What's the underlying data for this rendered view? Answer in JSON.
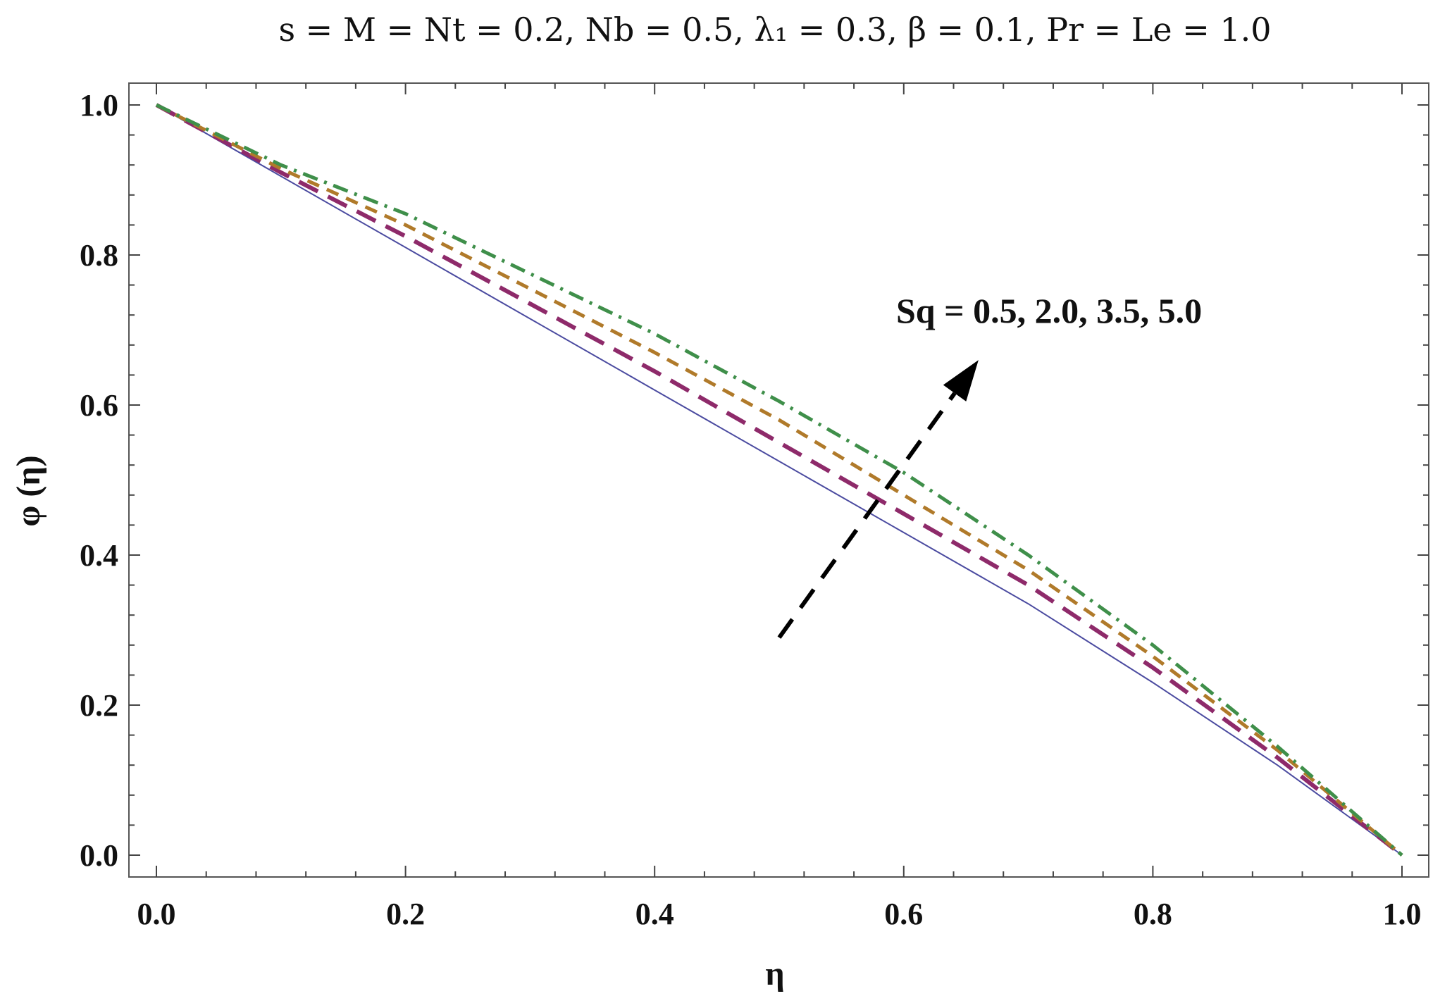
{
  "chart_data": {
    "type": "line",
    "title": "s = M = Nt = 0.2, Nb = 0.5, λ₁ = 0.3, β = 0.1, Pr = Le = 1.0",
    "xlabel": "η",
    "ylabel": "φ (η)",
    "xlim": [
      0.0,
      1.0
    ],
    "ylim": [
      0.0,
      1.0
    ],
    "x_ticks": [
      "0.0",
      "0.2",
      "0.4",
      "0.6",
      "0.8",
      "1.0"
    ],
    "y_ticks": [
      "0.0",
      "0.2",
      "0.4",
      "0.6",
      "0.8",
      "1.0"
    ],
    "grid": false,
    "annotation": {
      "text": "Sq = 0.5, 2.0, 3.5, 5.0",
      "arrow_from": [
        0.5,
        0.29
      ],
      "arrow_to": [
        0.66,
        0.66
      ]
    },
    "x": [
      0.0,
      0.1,
      0.2,
      0.3,
      0.4,
      0.5,
      0.6,
      0.7,
      0.8,
      0.9,
      1.0
    ],
    "series": [
      {
        "values": [
          1.0,
          0.905,
          0.81,
          0.715,
          0.62,
          0.525,
          0.43,
          0.335,
          0.23,
          0.12,
          0.0
        ],
        "color": "#4b4ba0",
        "dash": "solid"
      },
      {
        "values": [
          1.0,
          0.91,
          0.825,
          0.735,
          0.645,
          0.55,
          0.455,
          0.36,
          0.25,
          0.13,
          0.0
        ],
        "color": "#8e2a6a",
        "dash": "long"
      },
      {
        "values": [
          1.0,
          0.915,
          0.84,
          0.755,
          0.67,
          0.58,
          0.48,
          0.38,
          0.265,
          0.14,
          0.0
        ],
        "color": "#b07a2a",
        "dash": "medium"
      },
      {
        "values": [
          1.0,
          0.92,
          0.855,
          0.775,
          0.695,
          0.605,
          0.51,
          0.4,
          0.28,
          0.145,
          0.0
        ],
        "color": "#3f8f4a",
        "dash": "dashdot"
      }
    ]
  }
}
